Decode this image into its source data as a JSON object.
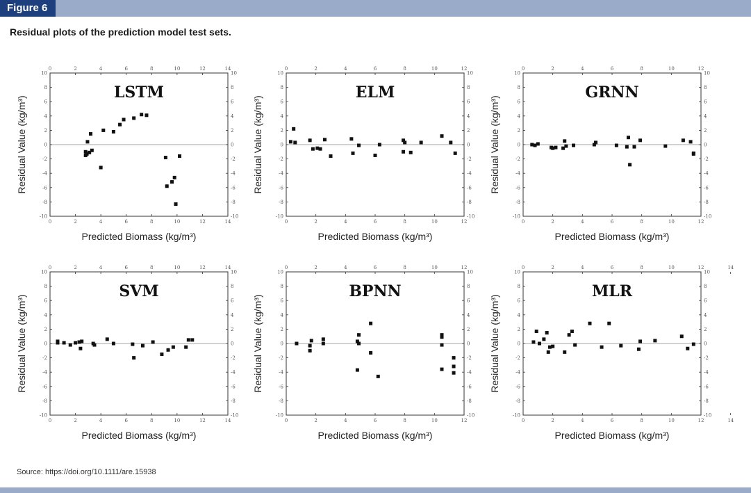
{
  "header": {
    "figure_tag": "Figure 6",
    "caption": "Residual plots of the prediction model test sets."
  },
  "footer": {
    "source": "Source: https://doi.org/10.1111/are.15938"
  },
  "colors": {
    "header_bar": "#9aaac9",
    "figure_tag_bg": "#1d3f7e",
    "marker": "#111111",
    "zero_line": "#888888"
  },
  "chart_data": [
    {
      "type": "scatter",
      "title": "LSTM",
      "xlabel": "Predicted Biomass (kg/m³)",
      "ylabel": "Residual Value (kg/m³)",
      "xlim": [
        0,
        14
      ],
      "ylim": [
        -10,
        10
      ],
      "xticks": [
        0,
        2,
        4,
        6,
        8,
        10,
        12,
        14
      ],
      "yticks": [
        10,
        8,
        6,
        4,
        2,
        0,
        -2,
        -4,
        -6,
        -8,
        -10
      ],
      "grid": false,
      "points": [
        [
          2.8,
          -1.0
        ],
        [
          2.8,
          -1.5
        ],
        [
          2.9,
          -1.3
        ],
        [
          2.95,
          0.4
        ],
        [
          3.1,
          -1.1
        ],
        [
          3.2,
          1.5
        ],
        [
          3.3,
          -0.8
        ],
        [
          4.0,
          -3.2
        ],
        [
          4.2,
          2.0
        ],
        [
          5.0,
          1.8
        ],
        [
          5.5,
          2.8
        ],
        [
          5.8,
          3.5
        ],
        [
          6.6,
          3.7
        ],
        [
          7.2,
          4.2
        ],
        [
          7.6,
          4.1
        ],
        [
          9.1,
          -1.8
        ],
        [
          9.2,
          -5.8
        ],
        [
          9.6,
          -5.2
        ],
        [
          9.8,
          -4.6
        ],
        [
          9.9,
          -8.3
        ],
        [
          10.2,
          -1.6
        ]
      ]
    },
    {
      "type": "scatter",
      "title": "ELM",
      "xlabel": "Predicted Biomass (kg/m³)",
      "ylabel": "Residual Value (kg/m³)",
      "xlim": [
        0,
        12
      ],
      "ylim": [
        -10,
        10
      ],
      "xticks": [
        0,
        2,
        4,
        6,
        8,
        10,
        12
      ],
      "yticks": [
        10,
        8,
        6,
        4,
        2,
        0,
        -2,
        -4,
        -6,
        -8,
        -10
      ],
      "grid": false,
      "points": [
        [
          0.3,
          0.4
        ],
        [
          0.5,
          2.2
        ],
        [
          0.6,
          0.3
        ],
        [
          1.6,
          0.6
        ],
        [
          1.8,
          -0.6
        ],
        [
          2.1,
          -0.5
        ],
        [
          2.3,
          -0.6
        ],
        [
          2.6,
          0.7
        ],
        [
          3.0,
          -1.6
        ],
        [
          4.4,
          0.8
        ],
        [
          4.5,
          -1.2
        ],
        [
          4.9,
          -0.1
        ],
        [
          6.0,
          -1.5
        ],
        [
          6.3,
          0.0
        ],
        [
          7.9,
          -1.0
        ],
        [
          7.9,
          0.6
        ],
        [
          8.0,
          0.3
        ],
        [
          8.4,
          -1.1
        ],
        [
          9.1,
          0.3
        ],
        [
          10.5,
          1.2
        ],
        [
          11.1,
          0.3
        ],
        [
          11.4,
          -1.2
        ]
      ]
    },
    {
      "type": "scatter",
      "title": "GRNN",
      "xlabel": "Predicted Biomass (kg/m³)",
      "ylabel": "Residual Value (kg/m³)",
      "xlim": [
        0,
        12
      ],
      "ylim": [
        -10,
        10
      ],
      "xticks": [
        0,
        2,
        4,
        6,
        8,
        10,
        12
      ],
      "yticks": [
        10,
        8,
        6,
        4,
        2,
        0,
        -2,
        -4,
        -6,
        -8,
        -10
      ],
      "grid": false,
      "points": [
        [
          0.6,
          0.0
        ],
        [
          0.8,
          -0.1
        ],
        [
          1.0,
          0.1
        ],
        [
          1.9,
          -0.4
        ],
        [
          2.0,
          -0.5
        ],
        [
          2.2,
          -0.4
        ],
        [
          2.7,
          -0.5
        ],
        [
          2.8,
          0.5
        ],
        [
          2.9,
          -0.2
        ],
        [
          3.4,
          -0.1
        ],
        [
          4.8,
          0.0
        ],
        [
          4.9,
          0.3
        ],
        [
          6.3,
          -0.1
        ],
        [
          7.0,
          -0.3
        ],
        [
          7.1,
          1.0
        ],
        [
          7.2,
          -2.8
        ],
        [
          7.5,
          -0.3
        ],
        [
          7.9,
          0.6
        ],
        [
          9.6,
          -0.2
        ],
        [
          10.8,
          0.6
        ],
        [
          11.3,
          0.4
        ],
        [
          11.5,
          -1.2
        ],
        [
          11.5,
          -1.3
        ]
      ]
    },
    {
      "type": "scatter",
      "title": "SVM",
      "xlabel": "Predicted Biomass (kg/m³)",
      "ylabel": "Residual Value (kg/m³)",
      "xlim": [
        0,
        14
      ],
      "ylim": [
        -10,
        10
      ],
      "xticks": [
        0,
        2,
        4,
        6,
        8,
        10,
        12,
        14
      ],
      "yticks": [
        10,
        8,
        6,
        4,
        2,
        0,
        -2,
        -4,
        -6,
        -8,
        -10
      ],
      "grid": false,
      "points": [
        [
          0.6,
          0.1
        ],
        [
          0.6,
          0.3
        ],
        [
          1.1,
          0.1
        ],
        [
          1.6,
          -0.2
        ],
        [
          2.0,
          0.1
        ],
        [
          2.3,
          0.2
        ],
        [
          2.4,
          -0.7
        ],
        [
          2.5,
          0.3
        ],
        [
          3.4,
          0.0
        ],
        [
          3.5,
          -0.2
        ],
        [
          4.5,
          0.6
        ],
        [
          5.0,
          0.0
        ],
        [
          6.5,
          -0.1
        ],
        [
          6.6,
          -2.0
        ],
        [
          7.3,
          -0.3
        ],
        [
          8.1,
          0.2
        ],
        [
          8.8,
          -1.5
        ],
        [
          9.3,
          -0.9
        ],
        [
          9.7,
          -0.5
        ],
        [
          10.7,
          -0.5
        ],
        [
          10.9,
          0.5
        ],
        [
          11.2,
          0.5
        ]
      ]
    },
    {
      "type": "scatter",
      "title": "BPNN",
      "xlabel": "Predicted Biomass (kg/m³)",
      "ylabel": "Residual Value (kg/m³)",
      "xlim": [
        0,
        12
      ],
      "ylim": [
        -10,
        10
      ],
      "xticks": [
        0,
        2,
        4,
        6,
        8,
        10,
        12
      ],
      "yticks": [
        10,
        8,
        6,
        4,
        2,
        0,
        -2,
        -4,
        -6,
        -8,
        -10
      ],
      "grid": false,
      "points": [
        [
          0.7,
          0.0
        ],
        [
          1.6,
          -0.3
        ],
        [
          1.6,
          -1.0
        ],
        [
          1.7,
          0.4
        ],
        [
          2.5,
          0.6
        ],
        [
          2.5,
          0.0
        ],
        [
          4.8,
          -3.7
        ],
        [
          4.8,
          0.3
        ],
        [
          4.9,
          0.0
        ],
        [
          4.9,
          1.2
        ],
        [
          5.7,
          2.8
        ],
        [
          5.7,
          -1.3
        ],
        [
          6.2,
          -4.6
        ],
        [
          10.5,
          1.2
        ],
        [
          10.5,
          0.9
        ],
        [
          10.5,
          -0.2
        ],
        [
          10.5,
          -3.6
        ],
        [
          11.3,
          -2.0
        ],
        [
          11.3,
          -3.2
        ],
        [
          11.3,
          -4.1
        ]
      ]
    },
    {
      "type": "scatter",
      "title": "MLR",
      "xlabel": "Predicted Biomass (kg/m³)",
      "ylabel": "Residual Value (kg/m³)",
      "xlim": [
        0,
        12
      ],
      "ylim": [
        -10,
        10
      ],
      "xticks": [
        0,
        2,
        4,
        6,
        8,
        10,
        12,
        14
      ],
      "yticks": [
        10,
        8,
        6,
        4,
        2,
        0,
        -2,
        -4,
        -6,
        -8,
        -10
      ],
      "grid": false,
      "points": [
        [
          0.7,
          0.2
        ],
        [
          0.9,
          1.7
        ],
        [
          1.1,
          0.0
        ],
        [
          1.4,
          0.6
        ],
        [
          1.6,
          1.5
        ],
        [
          1.7,
          -1.2
        ],
        [
          1.8,
          -0.5
        ],
        [
          2.0,
          -0.4
        ],
        [
          2.8,
          -1.2
        ],
        [
          3.1,
          1.2
        ],
        [
          3.3,
          1.7
        ],
        [
          3.5,
          -0.2
        ],
        [
          4.5,
          2.8
        ],
        [
          5.3,
          -0.5
        ],
        [
          5.8,
          2.8
        ],
        [
          6.6,
          -0.3
        ],
        [
          7.8,
          -0.8
        ],
        [
          7.9,
          0.3
        ],
        [
          8.9,
          0.4
        ],
        [
          10.7,
          1.0
        ],
        [
          11.1,
          -0.7
        ],
        [
          11.5,
          -0.1
        ]
      ]
    }
  ]
}
